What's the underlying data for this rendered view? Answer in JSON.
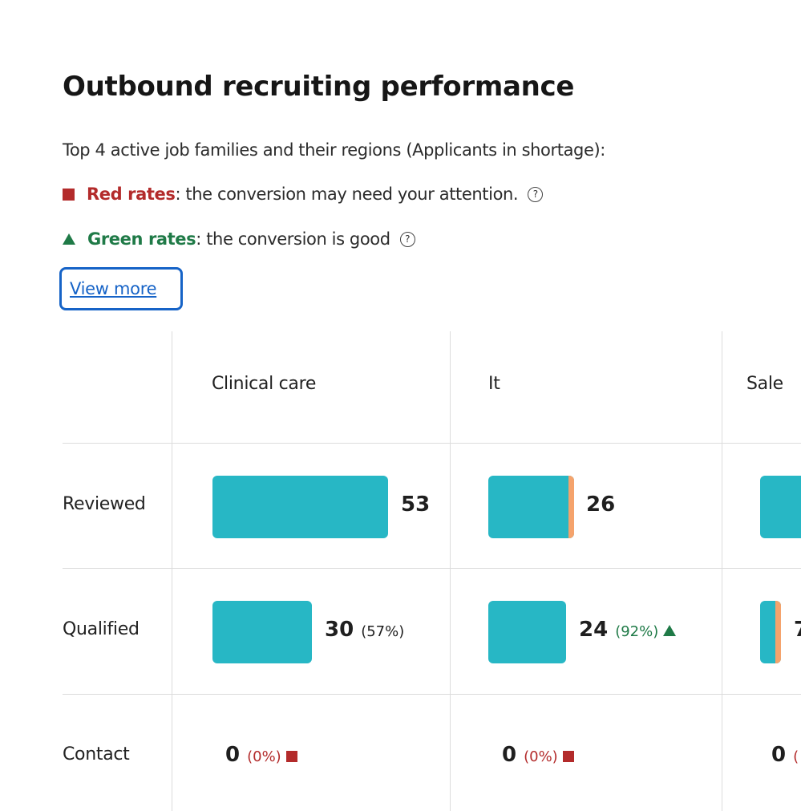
{
  "header": {
    "title": "Outbound recruiting performance",
    "subtitle": "Top 4 active job families and their regions (Applicants in shortage):"
  },
  "legend": {
    "red": {
      "label": "Red rates",
      "text": ": the conversion may need your attention.",
      "color": "#b32b2b",
      "icon": "square-icon",
      "help_icon": "help-circle-icon",
      "help_glyph": "?"
    },
    "green": {
      "label": "Green rates",
      "text": ": the conversion is good",
      "color": "#1f7a47",
      "icon": "triangle-up-icon",
      "help_icon": "help-circle-icon",
      "help_glyph": "?"
    }
  },
  "view_more": {
    "label": "View more",
    "color": "#1663c7"
  },
  "table": {
    "columns": [
      "Clinical care",
      "It",
      "Sale"
    ],
    "rows": [
      "Reviewed",
      "Qualified",
      "Contact"
    ],
    "bar_color": "#27b7c5",
    "accent_color": "#f5a36c",
    "cells": {
      "reviewed": [
        {
          "value": "53"
        },
        {
          "value": "26"
        },
        {
          "value": ""
        }
      ],
      "qualified": [
        {
          "value": "30",
          "pct": "(57%)"
        },
        {
          "value": "24",
          "pct": "(92%)"
        },
        {
          "value": "7"
        }
      ],
      "contact": [
        {
          "value": "0",
          "pct": "(0%)"
        },
        {
          "value": "0",
          "pct": "(0%)"
        },
        {
          "value": "0",
          "pct": "("
        }
      ]
    }
  }
}
